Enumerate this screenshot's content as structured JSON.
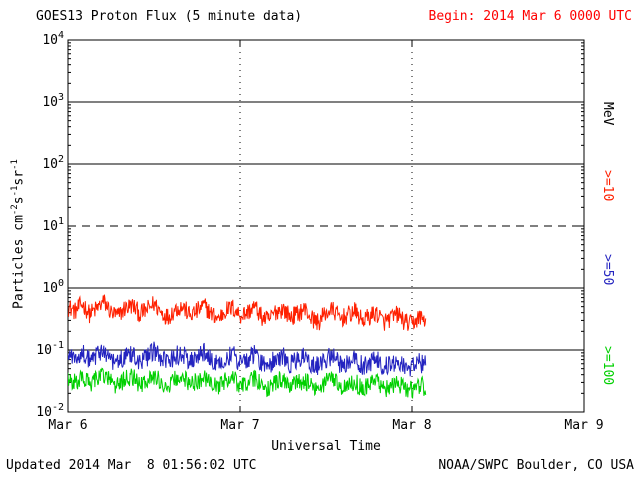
{
  "header": {
    "title": "GOES13 Proton Flux (5 minute data)",
    "begin_label": "Begin: 2014 Mar 6 0000 UTC"
  },
  "footer": {
    "updated": "Updated 2014 Mar  8 01:56:02 UTC",
    "credit": "NOAA/SWPC Boulder, CO USA"
  },
  "axes": {
    "xlabel": "Universal Time",
    "ylabel_parts": [
      [
        "Particles cm",
        "-2"
      ],
      [
        "s",
        "-1"
      ],
      [
        "sr",
        "-1"
      ]
    ]
  },
  "colors": {
    "begin_text": "#ff0000",
    "axis": "#000000",
    "background": "#ffffff"
  },
  "right_legend": [
    {
      "label": "MeV",
      "color": "#000000"
    },
    {
      "label": ">=10",
      "color": "#ff2000"
    },
    {
      "label": ">=50",
      "color": "#2424c0"
    },
    {
      "label": ">=100",
      "color": "#00d000"
    }
  ],
  "chart_data": {
    "type": "line",
    "title": "GOES13 Proton Flux (5 minute data)",
    "xlabel": "Universal Time",
    "ylabel": "Particles cm^-2 s^-1 sr^-1",
    "x_range_days": [
      0,
      3
    ],
    "x_ticks": [
      {
        "day": 0,
        "label": "Mar 6"
      },
      {
        "day": 1,
        "label": "Mar 7"
      },
      {
        "day": 2,
        "label": "Mar 8"
      },
      {
        "day": 3,
        "label": "Mar 9"
      }
    ],
    "y_log_range": [
      -2,
      4
    ],
    "y_tick_labels": [
      "10^-2",
      "10^-1",
      "10^0",
      "10^1",
      "10^2",
      "10^3",
      "10^4"
    ],
    "hlines": [
      {
        "exp": 3,
        "style": "solid"
      },
      {
        "exp": 2,
        "style": "solid"
      },
      {
        "exp": 1,
        "style": "dashed"
      },
      {
        "exp": 0,
        "style": "solid"
      },
      {
        "exp": -1,
        "style": "solid"
      }
    ],
    "vlines_days": [
      1,
      2
    ],
    "legend_position": "right",
    "grid": true,
    "series": [
      {
        "id": "ge10",
        "name": ">=10 MeV",
        "color": "#ff2000",
        "seed": 12345,
        "noise": 0.3,
        "hourly": [
          0.5,
          0.42,
          0.55,
          0.38,
          0.46,
          0.6,
          0.4,
          0.35,
          0.48,
          0.52,
          0.38,
          0.44,
          0.56,
          0.4,
          0.34,
          0.46,
          0.5,
          0.36,
          0.42,
          0.52,
          0.38,
          0.32,
          0.44,
          0.48,
          0.36,
          0.4,
          0.5,
          0.34,
          0.3,
          0.42,
          0.46,
          0.34,
          0.38,
          0.46,
          0.32,
          0.28,
          0.4,
          0.44,
          0.32,
          0.36,
          0.42,
          0.3,
          0.34,
          0.4,
          0.28,
          0.32,
          0.38,
          0.28,
          0.26,
          0.34,
          0.3
        ]
      },
      {
        "id": "ge50",
        "name": ">=50 MeV",
        "color": "#2424c0",
        "seed": 67891,
        "noise": 0.32,
        "hourly": [
          0.085,
          0.07,
          0.095,
          0.065,
          0.08,
          0.1,
          0.07,
          0.06,
          0.085,
          0.09,
          0.065,
          0.075,
          0.095,
          0.07,
          0.06,
          0.08,
          0.088,
          0.064,
          0.074,
          0.09,
          0.066,
          0.058,
          0.078,
          0.084,
          0.062,
          0.072,
          0.088,
          0.06,
          0.055,
          0.075,
          0.082,
          0.06,
          0.068,
          0.08,
          0.058,
          0.054,
          0.072,
          0.078,
          0.058,
          0.064,
          0.075,
          0.056,
          0.062,
          0.072,
          0.054,
          0.058,
          0.068,
          0.055,
          0.052,
          0.062,
          0.058
        ]
      },
      {
        "id": "ge100",
        "name": ">=100 MeV",
        "color": "#00d000",
        "seed": 24683,
        "noise": 0.3,
        "hourly": [
          0.035,
          0.03,
          0.038,
          0.028,
          0.033,
          0.04,
          0.03,
          0.026,
          0.035,
          0.037,
          0.028,
          0.032,
          0.038,
          0.03,
          0.026,
          0.034,
          0.036,
          0.028,
          0.031,
          0.037,
          0.028,
          0.025,
          0.032,
          0.035,
          0.027,
          0.03,
          0.036,
          0.026,
          0.024,
          0.031,
          0.034,
          0.026,
          0.029,
          0.033,
          0.025,
          0.024,
          0.03,
          0.032,
          0.025,
          0.028,
          0.031,
          0.024,
          0.027,
          0.03,
          0.024,
          0.025,
          0.029,
          0.024,
          0.023,
          0.027,
          0.025
        ]
      }
    ]
  }
}
